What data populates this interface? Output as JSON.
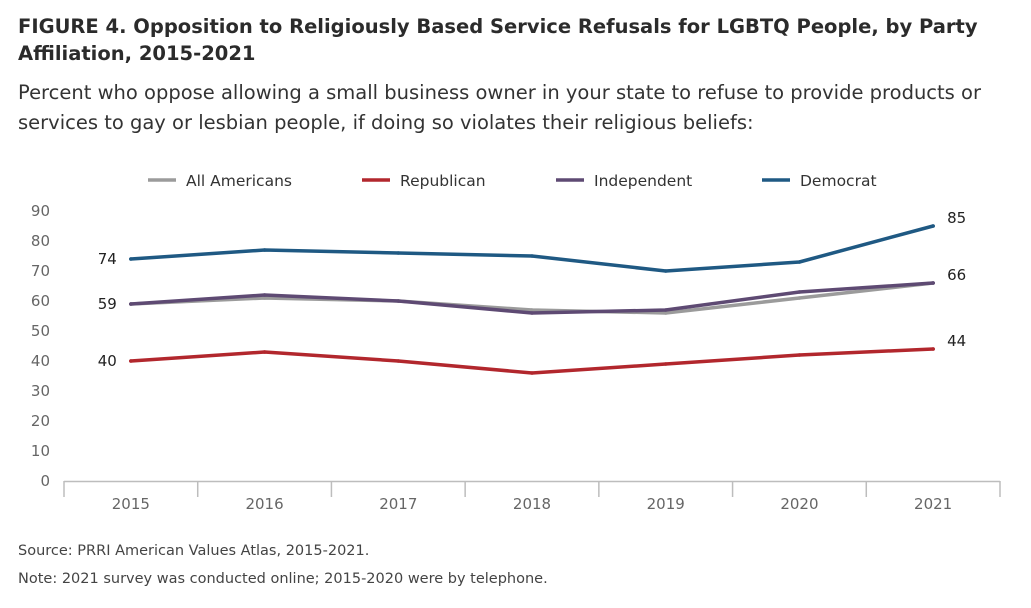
{
  "header": {
    "title": "FIGURE 4.  Opposition to Religiously Based Service Refusals for LGBTQ People, by Party Affiliation, 2015-2021",
    "subtitle": "Percent who oppose allowing a small business owner in your state to refuse to provide products or services to gay or lesbian people, if doing so violates their religious beliefs:"
  },
  "footer": {
    "source": "Source: PRRI American Values Atlas, 2015-2021.",
    "note": "Note: 2021 survey was conducted online; 2015-2020 were by telephone."
  },
  "chart_data": {
    "type": "line",
    "x": [
      "2015",
      "2016",
      "2017",
      "2018",
      "2019",
      "2020",
      "2021"
    ],
    "ylim": [
      0,
      90
    ],
    "yticks": [
      0,
      10,
      20,
      30,
      40,
      50,
      60,
      70,
      80,
      90
    ],
    "grid": false,
    "legend_position": "top",
    "series": [
      {
        "name": "All Americans",
        "color": "#9b9b9b",
        "values": [
          59,
          61,
          60,
          57,
          56,
          61,
          66
        ]
      },
      {
        "name": "Republican",
        "color": "#b2272d",
        "values": [
          40,
          43,
          40,
          36,
          39,
          42,
          44
        ]
      },
      {
        "name": "Independent",
        "color": "#5e4a73",
        "values": [
          59,
          62,
          60,
          56,
          57,
          63,
          66
        ]
      },
      {
        "name": "Democrat",
        "color": "#1f5983",
        "values": [
          74,
          77,
          76,
          75,
          70,
          73,
          85
        ]
      }
    ],
    "data_labels": [
      {
        "text": "74",
        "series": "Democrat",
        "x": "2015",
        "side": "left"
      },
      {
        "text": "59",
        "series": "Independent",
        "x": "2015",
        "side": "left"
      },
      {
        "text": "40",
        "series": "Republican",
        "x": "2015",
        "side": "left"
      },
      {
        "text": "85",
        "series": "Democrat",
        "x": "2021",
        "side": "right"
      },
      {
        "text": "66",
        "series": "Independent",
        "x": "2021",
        "side": "right"
      },
      {
        "text": "44",
        "series": "Republican",
        "x": "2021",
        "side": "right"
      }
    ]
  }
}
